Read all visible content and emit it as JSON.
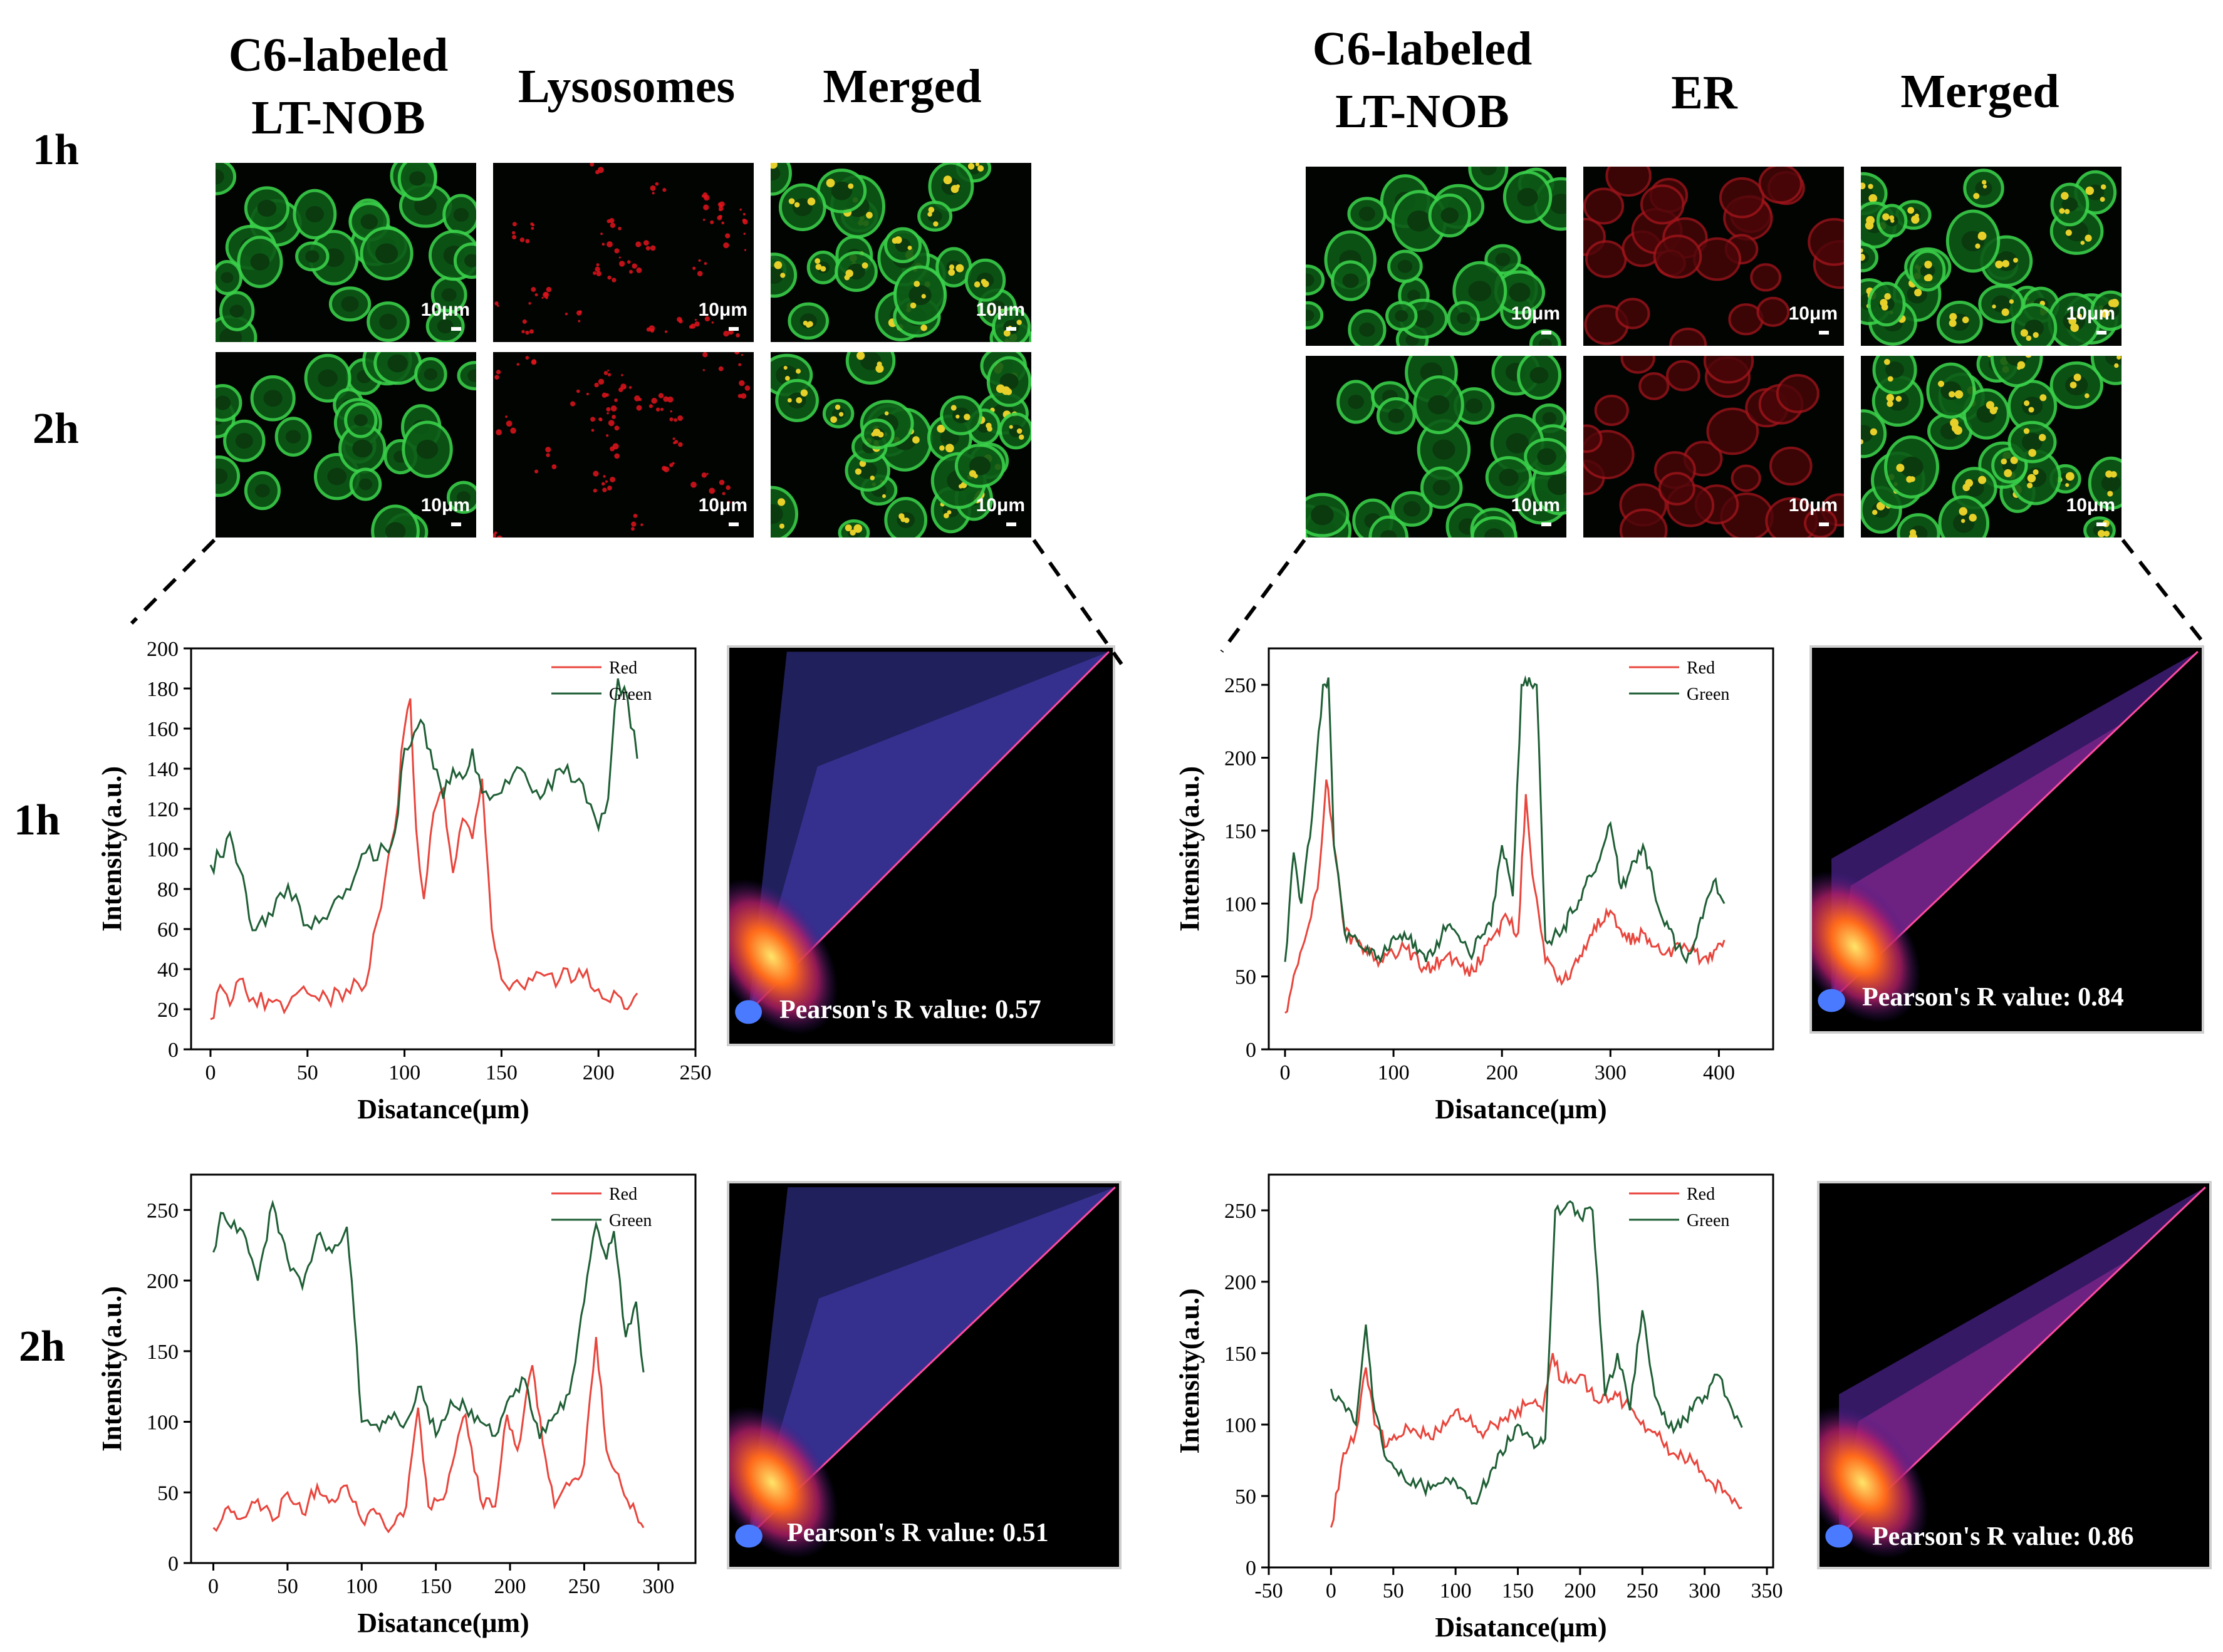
{
  "panels": [
    {
      "titles": [
        "C6-labeled\nLT-NOB",
        "Lysosomes",
        "Merged"
      ],
      "rows": [
        "1h",
        "2h"
      ],
      "scale_label": "10μm",
      "pearson": [
        "Pearson's R value: 0.57",
        "Pearson's R value: 0.51"
      ]
    },
    {
      "titles": [
        "C6-labeled\nLT-NOB",
        "ER",
        "Merged"
      ],
      "rows": [
        "1h",
        "2h"
      ],
      "scale_label": "10μm",
      "pearson": [
        "Pearson's R value: 0.84",
        "Pearson's R value: 0.86"
      ]
    }
  ],
  "plot_row_labels": [
    "1h",
    "2h"
  ],
  "colors": {
    "red": "#e8453c",
    "green": "#1e5e35"
  },
  "chart_data": [
    {
      "type": "line",
      "id": "lyso-1h",
      "xlabel": "Disatance(μm)",
      "ylabel": "Intensity(a.u.)",
      "xlim": [
        -10,
        250
      ],
      "ylim": [
        0,
        200
      ],
      "xticks": [
        0,
        50,
        100,
        150,
        200,
        250
      ],
      "yticks": [
        0,
        20,
        40,
        60,
        80,
        100,
        120,
        140,
        160,
        180,
        200
      ],
      "legend": "top-right",
      "series": [
        {
          "name": "Red",
          "x": [
            0,
            5,
            10,
            15,
            20,
            30,
            40,
            50,
            60,
            70,
            80,
            90,
            95,
            100,
            103,
            106,
            110,
            115,
            120,
            125,
            130,
            135,
            140,
            145,
            150,
            160,
            170,
            180,
            190,
            200,
            210,
            215,
            220
          ],
          "y": [
            15,
            32,
            22,
            35,
            24,
            25,
            22,
            28,
            26,
            30,
            32,
            85,
            110,
            160,
            175,
            110,
            75,
            118,
            130,
            88,
            115,
            105,
            135,
            60,
            35,
            32,
            38,
            35,
            40,
            30,
            27,
            20,
            28
          ]
        },
        {
          "name": "Green",
          "x": [
            0,
            5,
            10,
            15,
            20,
            25,
            30,
            40,
            50,
            60,
            70,
            80,
            90,
            95,
            100,
            105,
            110,
            115,
            120,
            125,
            130,
            135,
            140,
            150,
            160,
            170,
            180,
            190,
            200,
            205,
            210,
            215,
            220
          ],
          "y": [
            92,
            96,
            108,
            90,
            65,
            63,
            68,
            82,
            62,
            65,
            80,
            98,
            100,
            108,
            150,
            158,
            162,
            140,
            125,
            140,
            135,
            150,
            128,
            128,
            140,
            125,
            140,
            135,
            110,
            125,
            185,
            175,
            145
          ]
        }
      ]
    },
    {
      "type": "line",
      "id": "er-1h",
      "xlabel": "Disatance(μm)",
      "ylabel": "Intensity(a.u.)",
      "xlim": [
        -15,
        450
      ],
      "ylim": [
        0,
        275
      ],
      "xticks": [
        0,
        100,
        200,
        300,
        400
      ],
      "yticks": [
        0,
        50,
        100,
        150,
        200,
        250
      ],
      "legend": "top-right",
      "series": [
        {
          "name": "Red",
          "x": [
            0,
            10,
            20,
            30,
            38,
            45,
            55,
            70,
            90,
            110,
            130,
            150,
            170,
            190,
            205,
            215,
            222,
            228,
            240,
            255,
            270,
            285,
            300,
            315,
            330,
            350,
            370,
            390,
            405
          ],
          "y": [
            25,
            55,
            80,
            110,
            185,
            140,
            80,
            72,
            60,
            70,
            55,
            65,
            50,
            75,
            90,
            80,
            175,
            120,
            60,
            45,
            60,
            85,
            95,
            75,
            80,
            65,
            70,
            60,
            75
          ]
        },
        {
          "name": "Green",
          "x": [
            0,
            8,
            15,
            25,
            35,
            40,
            45,
            55,
            70,
            90,
            110,
            130,
            150,
            170,
            190,
            200,
            210,
            218,
            225,
            232,
            240,
            255,
            275,
            290,
            300,
            310,
            330,
            350,
            370,
            385,
            395,
            405
          ],
          "y": [
            60,
            135,
            100,
            160,
            250,
            255,
            140,
            80,
            70,
            65,
            80,
            60,
            85,
            65,
            85,
            140,
            105,
            250,
            255,
            250,
            75,
            80,
            110,
            130,
            155,
            110,
            140,
            85,
            60,
            90,
            115,
            100
          ]
        }
      ]
    },
    {
      "type": "line",
      "id": "lyso-2h",
      "xlabel": "Disatance(μm)",
      "ylabel": "Intensity(a.u.)",
      "xlim": [
        -15,
        325
      ],
      "ylim": [
        0,
        275
      ],
      "xticks": [
        0,
        50,
        100,
        150,
        200,
        250,
        300
      ],
      "yticks": [
        0,
        50,
        100,
        150,
        200,
        250
      ],
      "legend": "top-right",
      "series": [
        {
          "name": "Red",
          "x": [
            0,
            10,
            20,
            30,
            40,
            50,
            60,
            70,
            80,
            90,
            100,
            110,
            120,
            130,
            138,
            145,
            155,
            165,
            170,
            180,
            190,
            198,
            205,
            215,
            222,
            230,
            240,
            250,
            258,
            265,
            275,
            285,
            290
          ],
          "y": [
            25,
            40,
            32,
            45,
            30,
            50,
            35,
            55,
            45,
            55,
            30,
            35,
            25,
            40,
            110,
            40,
            45,
            90,
            105,
            45,
            40,
            105,
            80,
            140,
            85,
            40,
            55,
            70,
            160,
            80,
            55,
            35,
            25
          ]
        },
        {
          "name": "Green",
          "x": [
            0,
            5,
            10,
            20,
            30,
            40,
            50,
            60,
            70,
            80,
            90,
            95,
            100,
            110,
            120,
            130,
            140,
            150,
            160,
            170,
            180,
            190,
            200,
            210,
            220,
            230,
            240,
            250,
            258,
            265,
            270,
            278,
            285,
            290
          ],
          "y": [
            220,
            248,
            240,
            235,
            200,
            255,
            215,
            195,
            232,
            220,
            238,
            175,
            100,
            98,
            102,
            100,
            125,
            90,
            115,
            110,
            100,
            90,
            118,
            130,
            88,
            105,
            120,
            185,
            240,
            215,
            235,
            160,
            185,
            135
          ]
        }
      ]
    },
    {
      "type": "line",
      "id": "er-2h",
      "xlabel": "Disatance(μm)",
      "ylabel": "Intensity(a.u.)",
      "xlim": [
        -50,
        355
      ],
      "ylim": [
        0,
        275
      ],
      "xticks": [
        -50,
        0,
        50,
        100,
        150,
        200,
        250,
        300,
        350
      ],
      "yticks": [
        0,
        50,
        100,
        150,
        200,
        250
      ],
      "legend": "top-right",
      "series": [
        {
          "name": "Red",
          "x": [
            0,
            10,
            20,
            28,
            35,
            45,
            60,
            80,
            100,
            120,
            140,
            160,
            170,
            178,
            185,
            200,
            215,
            230,
            245,
            260,
            275,
            290,
            305,
            320,
            330
          ],
          "y": [
            28,
            80,
            95,
            140,
            100,
            85,
            100,
            90,
            110,
            95,
            105,
            115,
            110,
            150,
            130,
            135,
            115,
            120,
            105,
            95,
            80,
            75,
            60,
            50,
            42
          ]
        },
        {
          "name": "Green",
          "x": [
            0,
            10,
            20,
            28,
            35,
            45,
            60,
            80,
            100,
            115,
            130,
            150,
            165,
            172,
            180,
            190,
            200,
            210,
            220,
            230,
            240,
            250,
            260,
            275,
            290,
            300,
            310,
            320,
            330
          ],
          "y": [
            125,
            115,
            100,
            170,
            110,
            75,
            60,
            55,
            60,
            45,
            70,
            100,
            85,
            90,
            250,
            255,
            245,
            250,
            120,
            150,
            110,
            180,
            120,
            95,
            110,
            120,
            135,
            115,
            98
          ]
        }
      ]
    }
  ]
}
